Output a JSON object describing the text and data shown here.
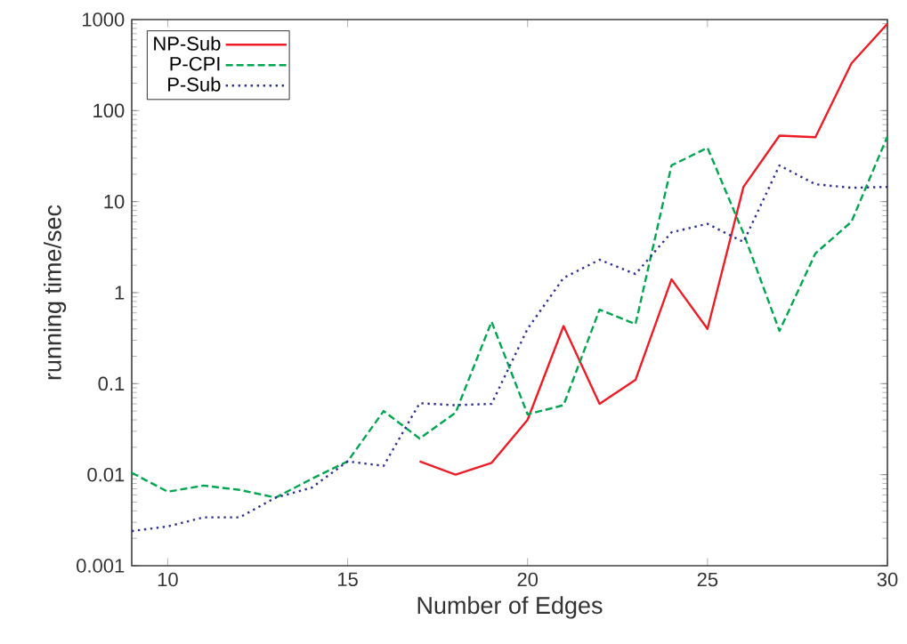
{
  "chart_data": {
    "type": "line",
    "xlabel": "Number of Edges",
    "ylabel": "running time/sec",
    "x": [
      9,
      10,
      11,
      12,
      13,
      14,
      15,
      16,
      17,
      18,
      19,
      20,
      21,
      22,
      23,
      24,
      25,
      26,
      27,
      28,
      29,
      30
    ],
    "series": [
      {
        "name": "NP-Sub",
        "color": "#ee1c25",
        "line_style": "solid",
        "values": [
          null,
          null,
          null,
          null,
          null,
          null,
          null,
          null,
          0.014,
          0.01,
          0.0135,
          0.04,
          0.43,
          0.06,
          0.11,
          1.4,
          0.4,
          14.5,
          53,
          51,
          330,
          900
        ]
      },
      {
        "name": "P-CPI",
        "color": "#00a650",
        "line_style": "dashed",
        "values": [
          0.0105,
          0.0065,
          0.0076,
          0.0068,
          0.0056,
          0.009,
          0.014,
          0.05,
          0.025,
          0.048,
          0.48,
          0.046,
          0.058,
          0.65,
          0.45,
          25,
          39,
          4.5,
          0.38,
          2.7,
          6,
          52
        ]
      },
      {
        "name": "P-Sub",
        "color": "#2e3192",
        "line_style": "dotted",
        "values": [
          0.0024,
          0.0027,
          0.0034,
          0.0034,
          0.0056,
          0.0072,
          0.014,
          0.0125,
          0.061,
          0.058,
          0.06,
          0.4,
          1.45,
          2.3,
          1.6,
          4.6,
          5.7,
          3.6,
          25,
          15.5,
          14.2,
          14.5
        ]
      }
    ],
    "log": "y",
    "xlim": [
      9,
      30
    ],
    "ylim": [
      0.001,
      1000
    ],
    "xticks": [
      10,
      15,
      20,
      25,
      30
    ],
    "yticks": [
      {
        "value": 0.001,
        "label": "0.001"
      },
      {
        "value": 0.01,
        "label": "0.01"
      },
      {
        "value": 0.1,
        "label": "0.1"
      },
      {
        "value": 1,
        "label": "1"
      },
      {
        "value": 10,
        "label": "10"
      },
      {
        "value": 100,
        "label": "100"
      },
      {
        "value": 1000,
        "label": "1000"
      }
    ],
    "grid": false,
    "legend": "top left",
    "marker": "none"
  }
}
